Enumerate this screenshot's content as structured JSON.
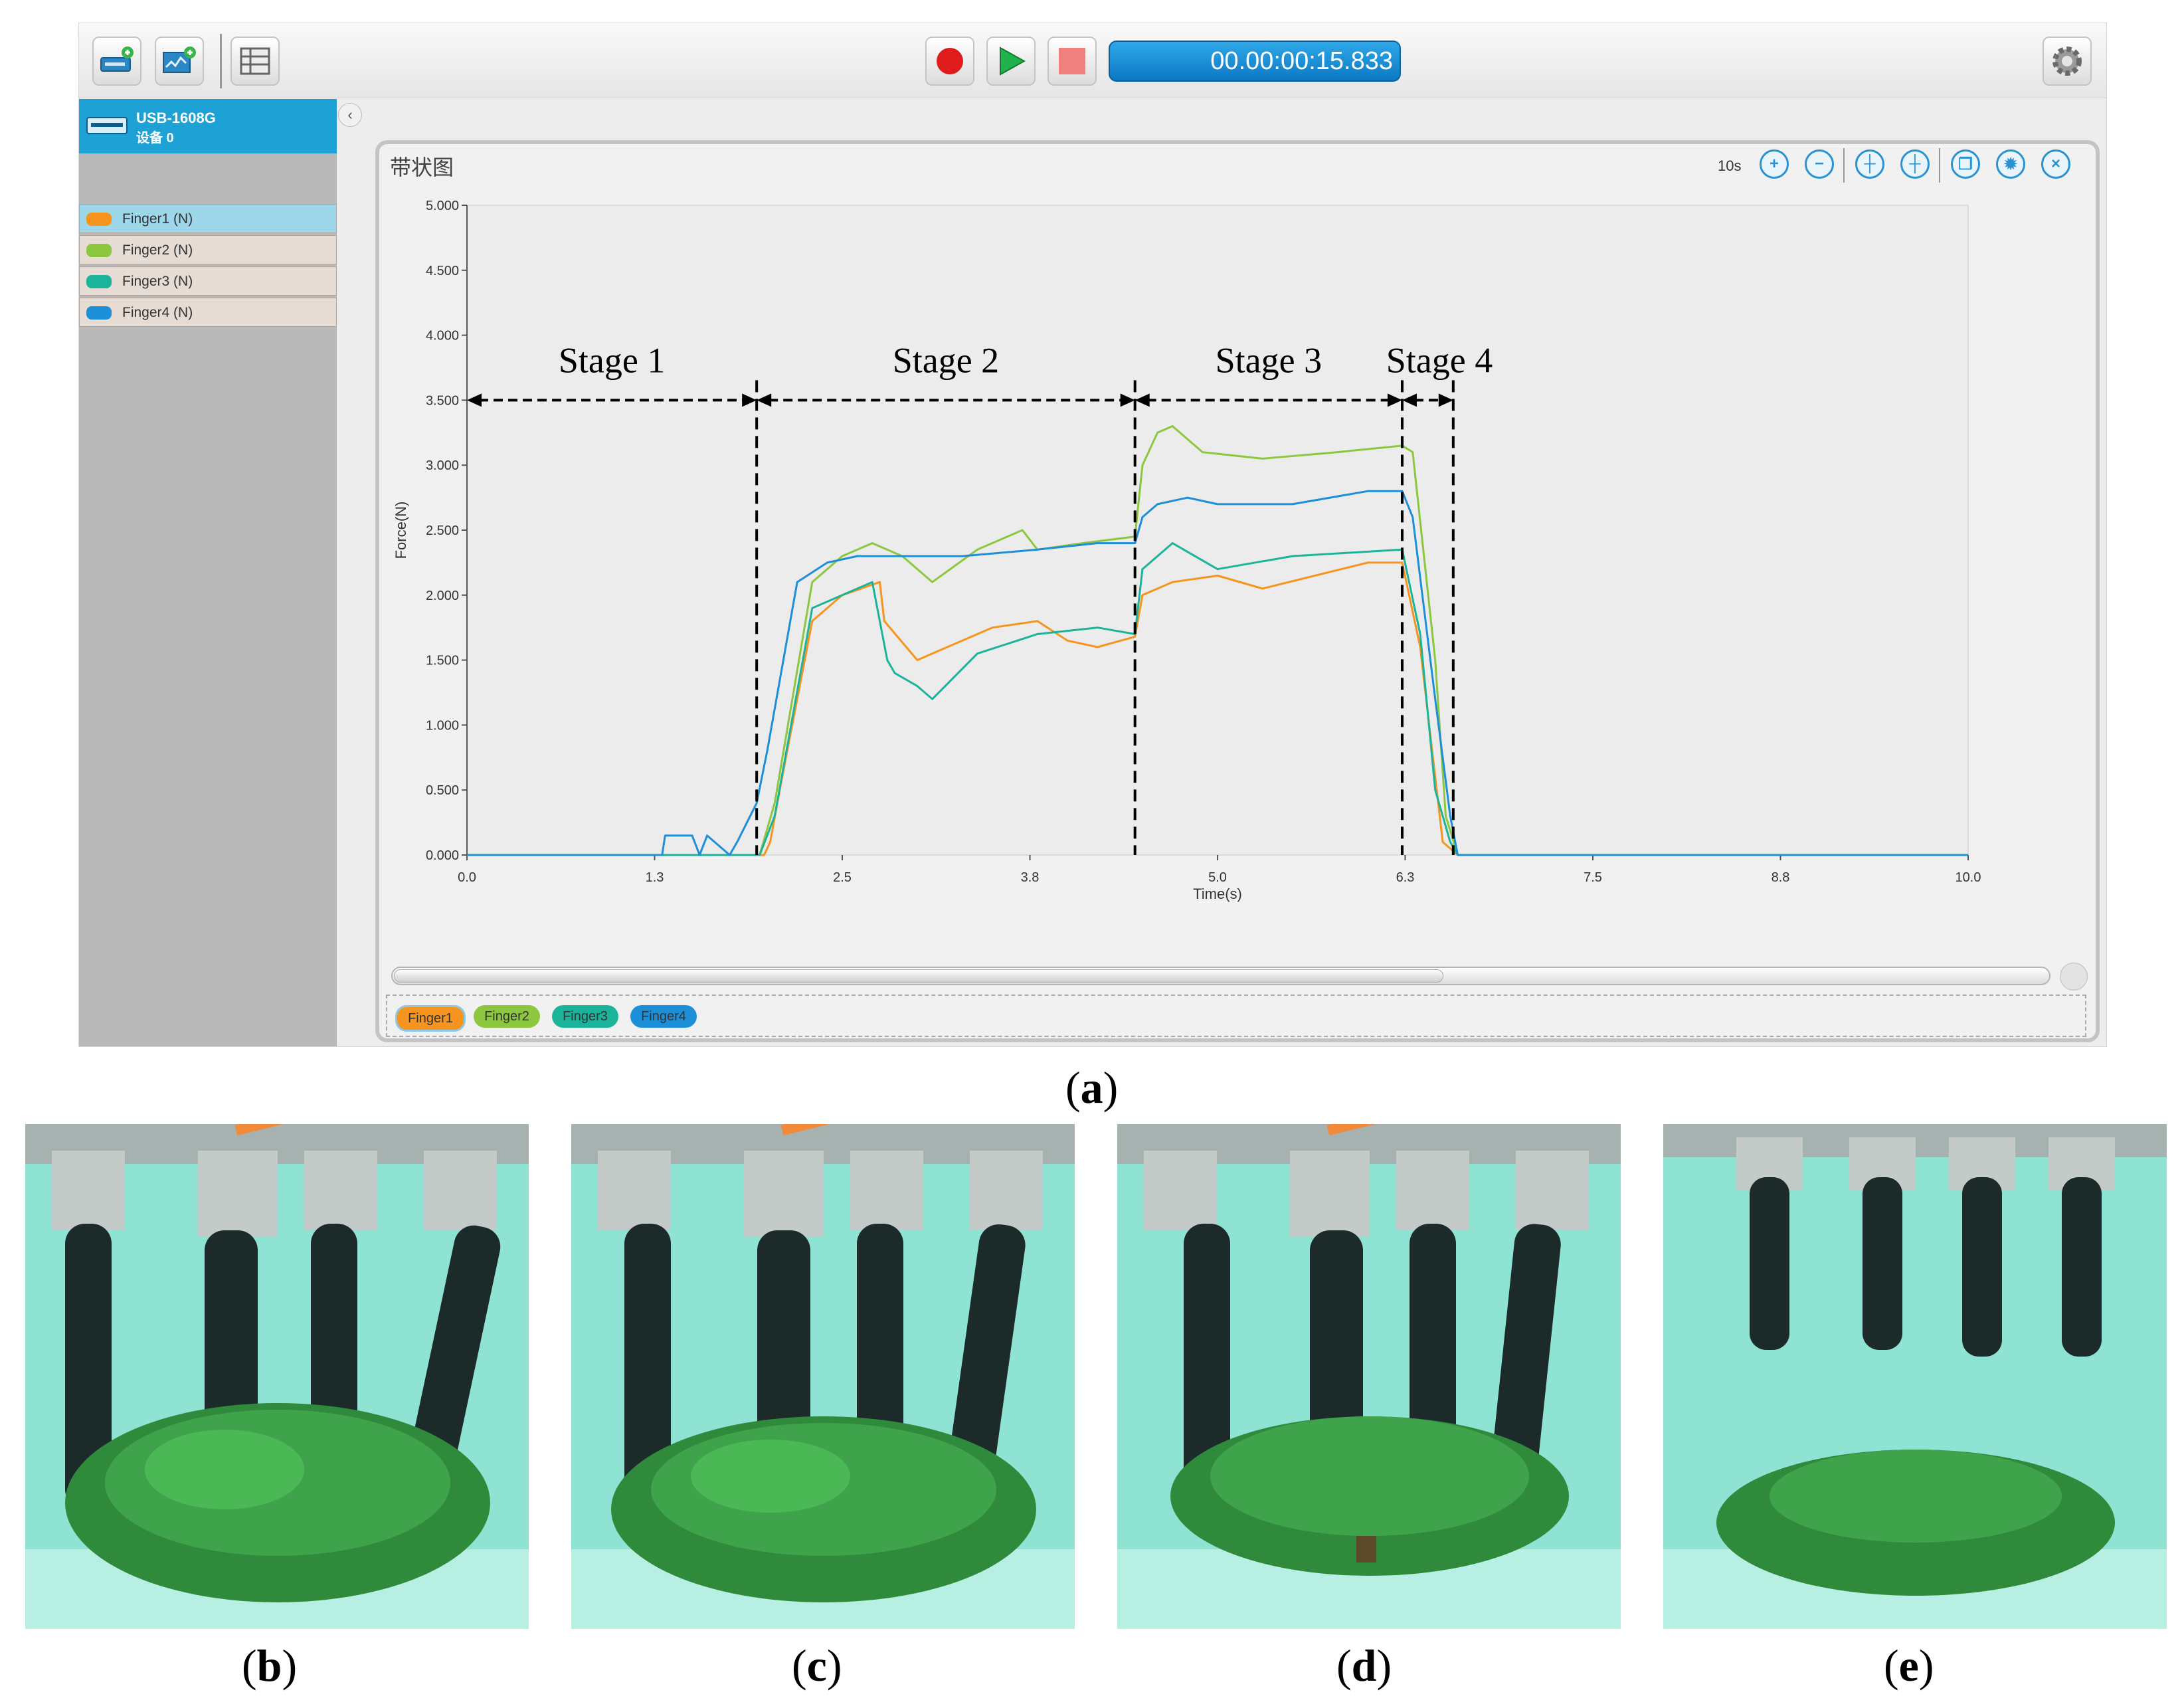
{
  "toolbar": {
    "buttons": [
      "add-device",
      "add-display",
      "layout"
    ],
    "timer": "00.00:00:15.833",
    "transport": [
      "record",
      "play",
      "stop"
    ]
  },
  "sidebar": {
    "device_name": "USB-1608G",
    "device_sub": "设备 0",
    "channels": [
      {
        "label": "Finger1 (N)",
        "color": "#f7941d"
      },
      {
        "label": "Finger2 (N)",
        "color": "#8dc63f"
      },
      {
        "label": "Finger3 (N)",
        "color": "#1bb39a"
      },
      {
        "label": "Finger4 (N)",
        "color": "#1c8fd8"
      }
    ]
  },
  "panel": {
    "title": "带状图",
    "zoom_label": "10s",
    "legend": [
      "Finger1",
      "Finger2",
      "Finger3",
      "Finger4"
    ]
  },
  "chart_data": {
    "type": "line",
    "title": "",
    "xlabel": "Time(s)",
    "ylabel": "Force(N)",
    "xlim": [
      0,
      10
    ],
    "ylim": [
      0,
      5
    ],
    "x_ticks": [
      "0.0",
      "1.3",
      "2.5",
      "3.8",
      "5.0",
      "6.3",
      "7.5",
      "8.8",
      "10.0"
    ],
    "x_tick_values": [
      0,
      1.25,
      2.5,
      3.75,
      5,
      6.25,
      7.5,
      8.75,
      10
    ],
    "y_ticks": [
      "0.000",
      "0.500",
      "1.000",
      "1.500",
      "2.000",
      "2.500",
      "3.000",
      "3.500",
      "4.000",
      "4.500",
      "5.000"
    ],
    "y_tick_values": [
      0,
      0.5,
      1,
      1.5,
      2,
      2.5,
      3,
      3.5,
      4,
      4.5,
      5
    ],
    "stages": [
      {
        "label": "Stage 1",
        "start": 0,
        "end": 1.93
      },
      {
        "label": "Stage 2",
        "start": 1.93,
        "end": 4.45
      },
      {
        "label": "Stage 3",
        "start": 4.45,
        "end": 6.23
      },
      {
        "label": "Stage 4",
        "start": 6.23,
        "end": 6.57
      }
    ],
    "series": [
      {
        "name": "Finger1",
        "color": "#f7941d",
        "x": [
          0,
          1.98,
          2.02,
          2.1,
          2.3,
          2.5,
          2.75,
          2.78,
          3.0,
          3.2,
          3.5,
          3.8,
          4.0,
          4.2,
          4.45,
          4.5,
          4.7,
          5.0,
          5.3,
          6.0,
          6.23,
          6.35,
          6.45,
          6.5,
          6.6,
          10
        ],
        "y": [
          0,
          0,
          0.1,
          0.6,
          1.8,
          2.0,
          2.1,
          1.8,
          1.5,
          1.6,
          1.75,
          1.8,
          1.65,
          1.6,
          1.68,
          2.0,
          2.1,
          2.15,
          2.05,
          2.25,
          2.25,
          1.6,
          0.6,
          0.1,
          0,
          0
        ]
      },
      {
        "name": "Finger2",
        "color": "#8dc63f",
        "x": [
          0,
          1.95,
          2.05,
          2.3,
          2.5,
          2.7,
          2.9,
          3.1,
          3.4,
          3.7,
          3.8,
          4.1,
          4.45,
          4.5,
          4.6,
          4.7,
          4.9,
          5.3,
          5.8,
          6.23,
          6.3,
          6.45,
          6.52,
          6.6,
          10
        ],
        "y": [
          0,
          0,
          0.4,
          2.1,
          2.3,
          2.4,
          2.3,
          2.1,
          2.35,
          2.5,
          2.35,
          2.4,
          2.45,
          3.0,
          3.25,
          3.3,
          3.1,
          3.05,
          3.1,
          3.15,
          3.1,
          1.5,
          0.3,
          0,
          0
        ]
      },
      {
        "name": "Finger3",
        "color": "#1bb39a",
        "x": [
          0,
          1.95,
          2.05,
          2.3,
          2.7,
          2.8,
          2.85,
          3.0,
          3.1,
          3.4,
          3.8,
          4.2,
          4.45,
          4.5,
          4.7,
          5.0,
          5.5,
          6.23,
          6.35,
          6.45,
          6.55,
          6.6,
          10
        ],
        "y": [
          0,
          0,
          0.3,
          1.9,
          2.1,
          1.5,
          1.4,
          1.3,
          1.2,
          1.55,
          1.7,
          1.75,
          1.7,
          2.2,
          2.4,
          2.2,
          2.3,
          2.35,
          1.7,
          0.5,
          0.1,
          0,
          0
        ]
      },
      {
        "name": "Finger4",
        "color": "#1c8fd8",
        "x": [
          0,
          1.3,
          1.32,
          1.5,
          1.55,
          1.6,
          1.75,
          1.8,
          1.93,
          2.0,
          2.2,
          2.4,
          2.6,
          2.9,
          3.3,
          3.8,
          4.2,
          4.45,
          4.5,
          4.6,
          4.8,
          5.0,
          5.5,
          6.0,
          6.23,
          6.3,
          6.45,
          6.55,
          6.6,
          10
        ],
        "y": [
          0,
          0,
          0.15,
          0.15,
          0,
          0.15,
          0,
          0.1,
          0.4,
          0.8,
          2.1,
          2.25,
          2.3,
          2.3,
          2.3,
          2.35,
          2.4,
          2.4,
          2.6,
          2.7,
          2.75,
          2.7,
          2.7,
          2.8,
          2.8,
          2.6,
          1.2,
          0.3,
          0,
          0
        ]
      }
    ]
  },
  "captions": [
    "(a)",
    "(b)",
    "(c)",
    "(d)",
    "(e)"
  ]
}
